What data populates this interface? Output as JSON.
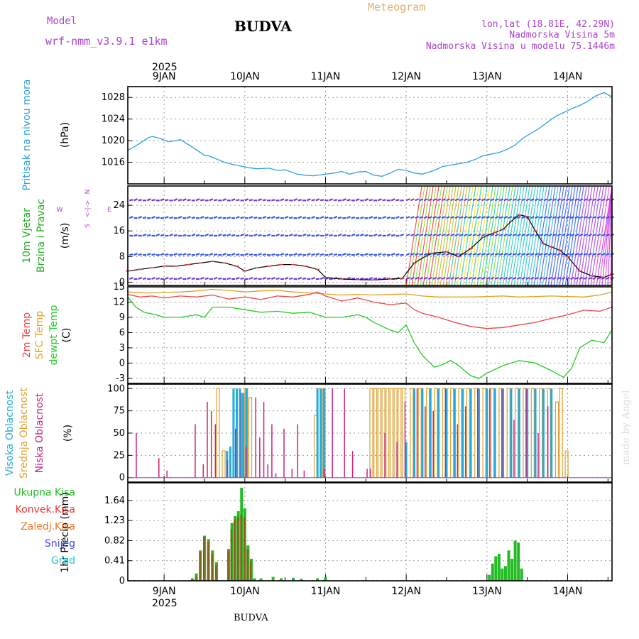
{
  "header": {
    "model_label": "Model",
    "model_name": "wrf-nmm_v3.9.1  e1km",
    "station": "BUDVA",
    "kind": "Meteogram",
    "lonlat": "lon,lat (18.81E, 42.29N)",
    "elevation": "Nadmorska Visina 5m",
    "model_elevation": "Nadmorska Visina u modelu 75.1446m",
    "footer_station": "BUDVA",
    "credit": "made by Angel"
  },
  "colors": {
    "pressure": "#2aa0e0",
    "wind_label": "#22aa22",
    "compass": "#aa44cc",
    "temp2m": "#ee4444",
    "sfc": "#e0a020",
    "dewpt": "#22cc22",
    "cloud_high": "#22aadd",
    "cloud_mid": "#e0a030",
    "cloud_low": "#cc2277",
    "rain_total": "#22bb22",
    "rain_conv": "#ee3333",
    "rain_frz": "#ee7722",
    "snow": "#4444ee",
    "hail": "#22cccc"
  },
  "chart_data": {
    "type": "line",
    "year": "2025",
    "day_labels": [
      "9JAN",
      "10JAN",
      "11JAN",
      "12JAN",
      "13JAN",
      "14JAN"
    ],
    "x_range_days": [
      8.55,
      14.55
    ],
    "panels": [
      {
        "id": "pressure",
        "labels": [
          "Pritisak na nivou mora",
          "(hPa)"
        ],
        "ylim": [
          1012,
          1030
        ],
        "ticks": [
          "1016",
          "1020",
          "1024",
          "1028"
        ],
        "tick_values": [
          1016,
          1020,
          1024,
          1028
        ],
        "series": [
          {
            "x": [
              8.55,
              8.7,
              8.8,
              8.85,
              8.95,
              9.05,
              9.15,
              9.2,
              9.35,
              9.5,
              9.55,
              9.65,
              9.75,
              9.85,
              9.95,
              10.05,
              10.15,
              10.3,
              10.4,
              10.5,
              10.65,
              10.75,
              10.85,
              10.95,
              11.1,
              11.2,
              11.3,
              11.4,
              11.5,
              11.6,
              11.7,
              11.8,
              11.9,
              12.0,
              12.1,
              12.2,
              12.35,
              12.45,
              12.6,
              12.75,
              12.85,
              12.95,
              13.05,
              13.15,
              13.25,
              13.35,
              13.45,
              13.55,
              13.65,
              13.75,
              13.85,
              13.95,
              14.05,
              14.15,
              14.25,
              14.35,
              14.45,
              14.55
            ],
            "y": [
              1018.2,
              1019.5,
              1020.5,
              1020.8,
              1020.4,
              1019.8,
              1020.0,
              1020.2,
              1018.8,
              1017.3,
              1017.2,
              1016.6,
              1016.0,
              1015.6,
              1015.3,
              1015.0,
              1014.8,
              1014.9,
              1014.5,
              1014.6,
              1013.8,
              1013.6,
              1013.5,
              1013.7,
              1014.0,
              1014.3,
              1013.8,
              1014.2,
              1014.3,
              1013.6,
              1013.4,
              1014.0,
              1014.7,
              1014.5,
              1014.0,
              1013.8,
              1014.5,
              1015.2,
              1015.6,
              1016.0,
              1016.5,
              1017.2,
              1017.5,
              1017.8,
              1018.4,
              1019.2,
              1020.5,
              1021.4,
              1022.3,
              1023.4,
              1024.5,
              1025.2,
              1025.9,
              1026.5,
              1027.3,
              1028.3,
              1028.9,
              1028.1
            ]
          }
        ]
      },
      {
        "id": "wind",
        "labels": [
          "10m Vjetar",
          "Brzina i Pravac",
          "(m/s)"
        ],
        "compass": [
          "N",
          "<-|->",
          "W",
          "E",
          "S"
        ],
        "ylim": [
          -1,
          30
        ],
        "ticks": [
          "0",
          "8",
          "16",
          "24"
        ],
        "tick_values": [
          0,
          8,
          16,
          24
        ],
        "series": [
          {
            "name": "speed",
            "x": [
              8.55,
              8.7,
              8.85,
              9.0,
              9.15,
              9.3,
              9.45,
              9.6,
              9.75,
              9.9,
              10.0,
              10.15,
              10.3,
              10.45,
              10.6,
              10.75,
              10.9,
              11.0,
              11.2,
              11.4,
              11.6,
              11.8,
              11.95,
              12.1,
              12.3,
              12.5,
              12.65,
              12.8,
              12.95,
              13.1,
              13.2,
              13.3,
              13.4,
              13.5,
              13.6,
              13.7,
              13.8,
              13.9,
              14.0,
              14.15,
              14.3,
              14.45,
              14.55
            ],
            "y": [
              3.5,
              4.0,
              4.5,
              5.0,
              5.0,
              5.5,
              6.0,
              6.5,
              6.0,
              5.0,
              3.5,
              4.5,
              5.0,
              5.5,
              5.5,
              5.0,
              4.0,
              1.5,
              1.0,
              0.8,
              0.7,
              1.0,
              1.2,
              6.0,
              9.0,
              9.5,
              8.0,
              10.5,
              14.0,
              15.5,
              16.5,
              19.0,
              21.0,
              20.5,
              16.0,
              12.0,
              11.0,
              10.0,
              8.0,
              3.5,
              2.0,
              1.5,
              2.5
            ]
          }
        ]
      },
      {
        "id": "temperature",
        "labels": [
          "2m Temp",
          "SFC Temp",
          "dewpt Temp",
          "(C)"
        ],
        "ylim": [
          -4,
          15
        ],
        "ticks": [
          "-3",
          "0",
          "3",
          "6",
          "9",
          "12",
          "15"
        ],
        "tick_values": [
          -3,
          0,
          3,
          6,
          9,
          12,
          15
        ],
        "series": [
          {
            "name": "2m Temp",
            "x": [
              8.55,
              8.7,
              8.85,
              9.0,
              9.2,
              9.4,
              9.6,
              9.8,
              10.0,
              10.2,
              10.4,
              10.6,
              10.8,
              10.9,
              11.0,
              11.2,
              11.4,
              11.6,
              11.8,
              12.0,
              12.1,
              12.2,
              12.4,
              12.6,
              12.8,
              13.0,
              13.2,
              13.4,
              13.6,
              13.8,
              14.0,
              14.2,
              14.4,
              14.55
            ],
            "y": [
              13.5,
              13.0,
              13.2,
              12.8,
              13.2,
              13.0,
              13.4,
              12.6,
              13.0,
              12.5,
              13.2,
              13.0,
              13.5,
              14.0,
              13.2,
              12.2,
              12.8,
              12.0,
              11.5,
              11.8,
              10.5,
              9.8,
              9.0,
              8.0,
              7.2,
              6.8,
              7.0,
              7.5,
              8.0,
              8.8,
              9.5,
              10.4,
              10.2,
              11.0
            ]
          },
          {
            "name": "SFC Temp",
            "x": [
              8.55,
              8.8,
              9.0,
              9.2,
              9.4,
              9.6,
              9.8,
              10.0,
              10.2,
              10.4,
              10.6,
              10.8,
              11.0,
              11.2,
              11.4,
              11.6,
              11.8,
              12.0,
              12.2,
              12.4,
              12.6,
              12.8,
              13.0,
              13.2,
              13.4,
              13.6,
              13.8,
              14.0,
              14.2,
              14.4,
              14.55
            ],
            "y": [
              14.0,
              13.8,
              13.9,
              14.0,
              14.2,
              14.5,
              14.3,
              14.0,
              14.2,
              14.3,
              14.0,
              13.8,
              13.6,
              13.4,
              13.5,
              13.4,
              13.5,
              13.6,
              13.2,
              13.0,
              13.0,
              13.0,
              13.1,
              13.2,
              13.0,
              13.1,
              13.2,
              13.1,
              13.0,
              13.4,
              14.0
            ]
          },
          {
            "name": "dewpt Temp",
            "x": [
              8.55,
              8.65,
              8.75,
              8.9,
              9.0,
              9.2,
              9.4,
              9.5,
              9.6,
              9.8,
              10.0,
              10.2,
              10.4,
              10.6,
              10.8,
              11.0,
              11.2,
              11.4,
              11.5,
              11.6,
              11.8,
              11.9,
              12.0,
              12.1,
              12.2,
              12.35,
              12.45,
              12.55,
              12.65,
              12.8,
              12.9,
              13.0,
              13.2,
              13.4,
              13.6,
              13.8,
              13.95,
              14.05,
              14.15,
              14.3,
              14.45,
              14.55
            ],
            "y": [
              13.0,
              11.0,
              10.0,
              9.5,
              9.0,
              9.0,
              9.5,
              9.0,
              11.0,
              11.0,
              10.5,
              10.0,
              10.2,
              9.8,
              10.0,
              9.0,
              9.0,
              9.5,
              9.0,
              8.0,
              6.5,
              6.0,
              7.5,
              4.0,
              1.5,
              -0.8,
              -0.3,
              0.5,
              -0.5,
              -2.5,
              -3.0,
              -2.0,
              -0.5,
              0.5,
              0.0,
              -1.5,
              -2.8,
              -1.0,
              3.0,
              4.5,
              4.0,
              6.5
            ]
          }
        ]
      },
      {
        "id": "cloud",
        "labels": [
          "Visoka Oblacnost",
          "Srednja Oblacnost",
          "Niska Oblacnost",
          "(%)"
        ],
        "ylim": [
          -5,
          105
        ],
        "ticks": [
          "0",
          "25",
          "50",
          "75",
          "100"
        ],
        "tick_values": [
          0,
          25,
          50,
          75,
          100
        ],
        "series": [
          {
            "name": "Visoka Oblacnost",
            "x": [
              9.78,
              9.82,
              9.86,
              9.9,
              9.94,
              9.98,
              10.02,
              10.9,
              10.94,
              10.98,
              12.0,
              12.1,
              12.2,
              12.3,
              12.4,
              12.5,
              12.6,
              12.7,
              12.8,
              12.9,
              13.0,
              13.1,
              13.2,
              13.3,
              13.4,
              13.5,
              13.6,
              13.7,
              13.8
            ],
            "y": [
              30,
              35,
              100,
              100,
              100,
              95,
              100,
              100,
              100,
              100,
              40,
              100,
              100,
              100,
              100,
              100,
              100,
              100,
              100,
              100,
              100,
              100,
              100,
              100,
              100,
              100,
              100,
              100,
              100
            ]
          },
          {
            "name": "Srednja Oblacnost",
            "x": [
              9.65,
              9.72,
              10.0,
              10.05,
              10.86,
              10.9,
              10.96,
              11.55,
              11.6,
              11.65,
              11.7,
              11.75,
              11.8,
              11.85,
              11.9,
              11.95,
              12.05,
              12.15,
              12.25,
              12.35,
              12.45,
              12.55,
              12.65,
              12.75,
              12.85,
              12.95,
              13.05,
              13.15,
              13.25,
              13.35,
              13.45,
              13.55,
              13.65,
              13.75,
              13.85,
              13.9,
              13.97
            ],
            "y": [
              100,
              30,
              100,
              90,
              70,
              100,
              100,
              100,
              100,
              100,
              100,
              100,
              100,
              100,
              100,
              100,
              100,
              100,
              100,
              100,
              100,
              100,
              100,
              100,
              100,
              100,
              100,
              100,
              100,
              100,
              100,
              100,
              100,
              100,
              85,
              100,
              30
            ]
          },
          {
            "name": "Niska Oblacnost",
            "x": [
              8.62,
              8.9,
              9.0,
              9.35,
              9.45,
              9.5,
              9.55,
              9.6,
              9.75,
              9.85,
              9.92,
              9.98,
              10.1,
              10.15,
              10.2,
              10.25,
              10.3,
              10.35,
              10.45,
              10.55,
              10.62,
              10.7,
              10.95,
              11.05,
              11.2,
              11.3,
              11.48,
              11.52,
              11.7,
              11.85,
              11.95,
              12.1,
              12.2,
              12.3,
              12.45,
              12.6,
              12.7,
              12.85,
              13.0,
              13.15,
              13.3,
              13.45,
              13.6,
              13.72
            ],
            "y": [
              50,
              22,
              8,
              60,
              15,
              85,
              75,
              60,
              20,
              55,
              95,
              35,
              90,
              45,
              85,
              15,
              60,
              5,
              55,
              10,
              60,
              8,
              10,
              100,
              100,
              30,
              10,
              10,
              50,
              40,
              85,
              100,
              80,
              75,
              100,
              60,
              80,
              100,
              100,
              100,
              65,
              100,
              50,
              80
            ]
          }
        ]
      },
      {
        "id": "precip",
        "labels": [
          "1hr Precip (mm)"
        ],
        "legend": [
          "Ukupna Kisa",
          "Konvek.Kisa",
          "Zaledj.Kisa",
          "Snijeg",
          "Grad"
        ],
        "ylim": [
          0,
          2.0
        ],
        "ticks": [
          "0",
          "0.41",
          "0.82",
          "1.23",
          "1.64"
        ],
        "tick_values": [
          0,
          0.41,
          0.82,
          1.23,
          1.64
        ],
        "series": [
          {
            "name": "Ukupna Kisa",
            "x": [
              9.35,
              9.4,
              9.45,
              9.5,
              9.55,
              9.6,
              9.65,
              9.8,
              9.84,
              9.88,
              9.92,
              9.96,
              10.0,
              10.04,
              10.08,
              10.12,
              10.2,
              10.35,
              10.45,
              10.6,
              10.7,
              10.9,
              11.0,
              13.03,
              13.07,
              13.11,
              13.15,
              13.19,
              13.23,
              13.27,
              13.31,
              13.35,
              13.39,
              13.43
            ],
            "y": [
              0.05,
              0.15,
              0.62,
              0.92,
              0.85,
              0.62,
              0.38,
              0.65,
              1.18,
              1.32,
              1.42,
              1.9,
              1.48,
              0.72,
              0.45,
              0.05,
              0.05,
              0.08,
              0.05,
              0.06,
              0.04,
              0.05,
              0.08,
              0.12,
              0.35,
              0.5,
              0.55,
              0.25,
              0.3,
              0.62,
              0.45,
              0.82,
              0.78,
              0.25
            ]
          },
          {
            "name": "Konvek.Kisa",
            "x": [
              9.35,
              9.4,
              9.45,
              9.5,
              9.55,
              9.6,
              9.65,
              9.8,
              9.84,
              9.88,
              9.92,
              9.96,
              10.0,
              10.04,
              10.08
            ],
            "y": [
              0.03,
              0.08,
              0.6,
              0.9,
              0.8,
              0.55,
              0.32,
              0.62,
              1.05,
              1.25,
              1.3,
              1.35,
              1.3,
              0.65,
              0.4
            ]
          }
        ]
      }
    ]
  }
}
